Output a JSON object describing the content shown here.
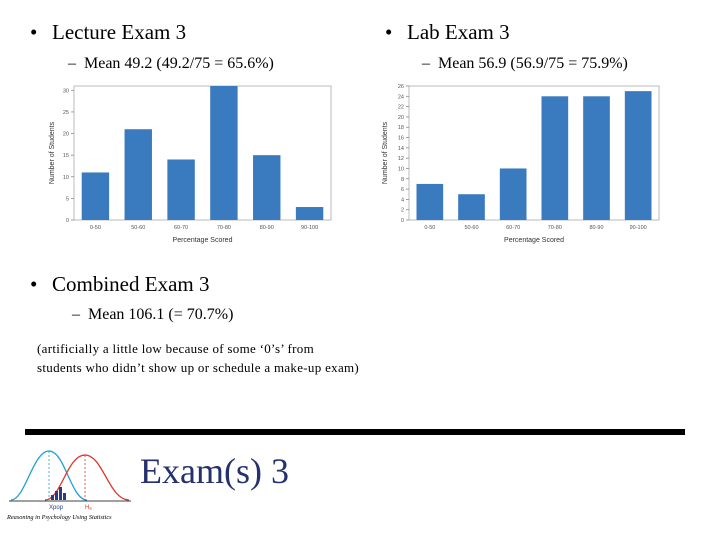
{
  "slide": {
    "left_heading": "Lecture Exam 3",
    "left_sub": "Mean 49.2 (49.2/75 = 65.6%)",
    "right_heading": "Lab Exam 3",
    "right_sub": "Mean 56.9 (56.9/75 = 75.9%)",
    "combined_heading": "Combined Exam 3",
    "combined_sub": "Mean 106.1 (= 70.7%)",
    "note_line1": "(artificially a little low because of some ‘0’s’ from",
    "note_line2": "students who didn’t show up or schedule a make-up exam)",
    "footer_title": "Exam(s) 3",
    "bullet": "•",
    "dash": "–"
  },
  "logo": {
    "caption": "Reasoning in Psychology Using Statistics",
    "label_left": "Xpop",
    "label_right": "Hₐ"
  },
  "chart_data": [
    {
      "type": "bar",
      "categories": [
        "0-50",
        "50-60",
        "60-70",
        "70-80",
        "80-90",
        "90-100"
      ],
      "values": [
        11,
        21,
        14,
        31,
        15,
        3
      ],
      "xlabel": "Percentage Scored",
      "ylabel": "Number of Students",
      "ylim": [
        0,
        31
      ],
      "yticks": [
        0,
        5,
        10,
        15,
        20,
        25,
        30
      ],
      "color": "#3a7abf"
    },
    {
      "type": "bar",
      "categories": [
        "0-50",
        "50-60",
        "60-70",
        "70-80",
        "80-90",
        "90-100"
      ],
      "values": [
        7,
        5,
        10,
        24,
        24,
        25
      ],
      "xlabel": "Percentage Scored",
      "ylabel": "Number of Students",
      "ylim": [
        0,
        26
      ],
      "yticks": [
        0,
        2,
        4,
        6,
        8,
        10,
        12,
        14,
        16,
        18,
        20,
        22,
        24,
        26
      ],
      "color": "#3a7abf"
    }
  ]
}
